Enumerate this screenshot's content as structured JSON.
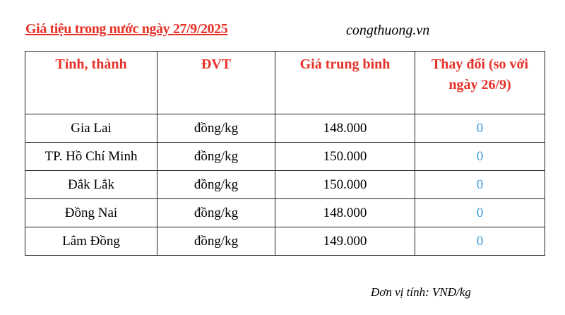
{
  "title": "Giá tiệu trong nước ngày 27/9/2025",
  "source": "congthuong.vn",
  "headers": [
    "Tỉnh, thành",
    "ĐVT",
    "Giá trung bình",
    "Thay đổi (so với ngày 26/9)"
  ],
  "rows": [
    {
      "province": "Gia Lai",
      "unit": "đồng/kg",
      "price": "148.000",
      "change": "0"
    },
    {
      "province": "TP. Hồ Chí Minh",
      "unit": "đồng/kg",
      "price": "150.000",
      "change": "0"
    },
    {
      "province": "Đắk Lắk",
      "unit": "đồng/kg",
      "price": "150.000",
      "change": "0"
    },
    {
      "province": "Đồng Nai",
      "unit": "đồng/kg",
      "price": "148.000",
      "change": "0"
    },
    {
      "province": "Lâm Đồng",
      "unit": "đồng/kg",
      "price": "149.000",
      "change": "0"
    }
  ],
  "footnote": "Đơn vị tính: VNĐ/kg",
  "colors": {
    "accent": "#e53228",
    "change": "#3a9de0"
  }
}
